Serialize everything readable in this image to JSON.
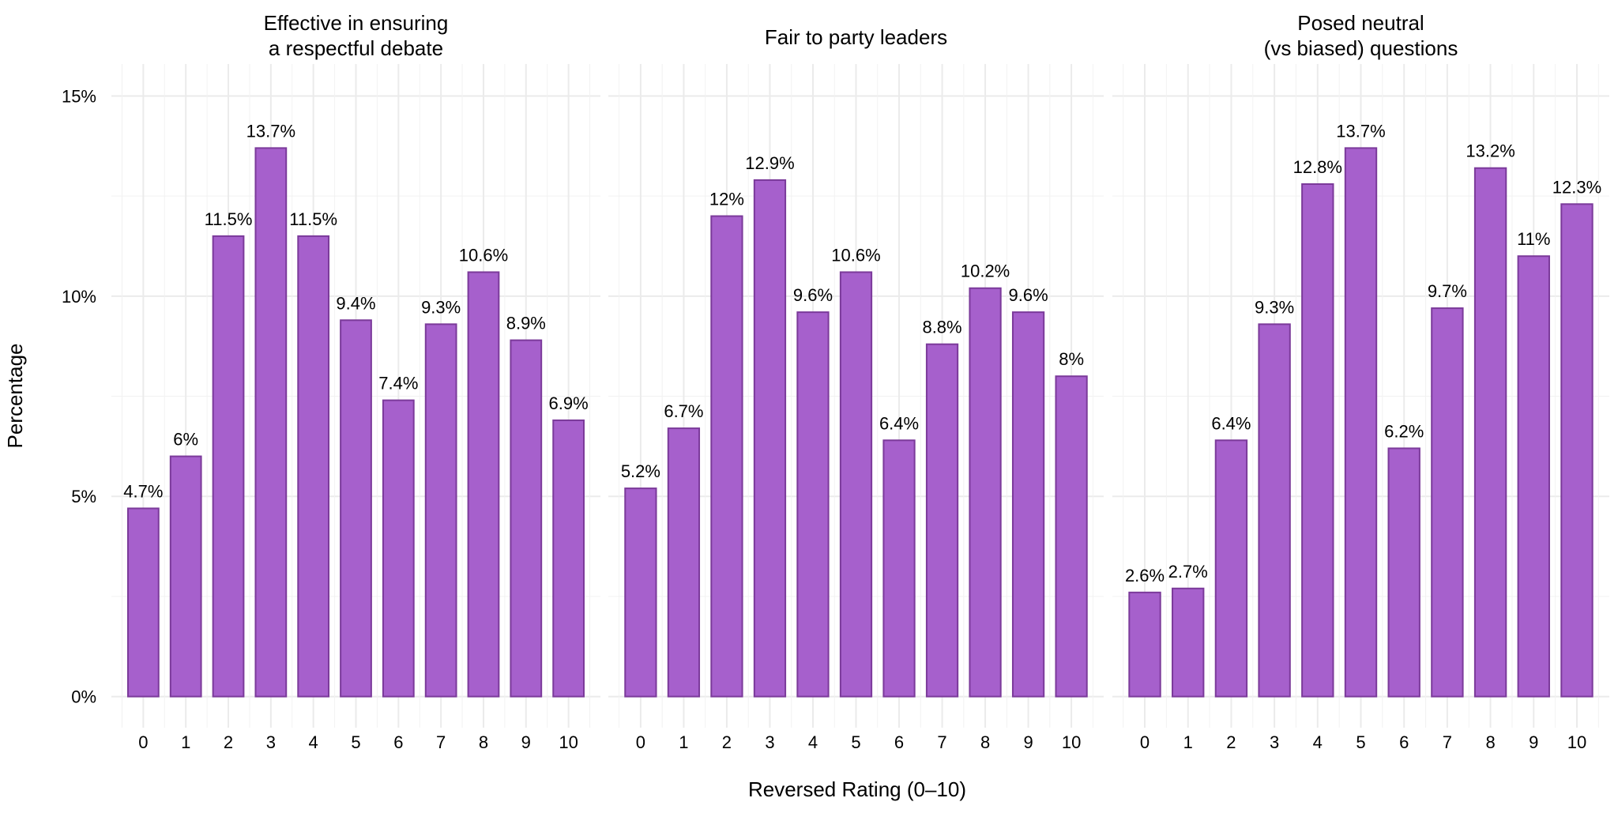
{
  "chart_data": {
    "type": "bar",
    "xlabel": "Reversed Rating (0–10)",
    "ylabel": "Percentage",
    "ylim": [
      0,
      15
    ],
    "yticks": [
      "0%",
      "5%",
      "10%",
      "15%"
    ],
    "grid": true,
    "categories": [
      "0",
      "1",
      "2",
      "3",
      "4",
      "5",
      "6",
      "7",
      "8",
      "9",
      "10"
    ],
    "bar_color": "#a660cc",
    "bar_border_color": "#7b3a9a",
    "panels": [
      {
        "title": [
          "Effective in ensuring",
          "a respectful debate"
        ],
        "values": [
          4.7,
          6.0,
          11.5,
          13.7,
          11.5,
          9.4,
          7.4,
          9.3,
          10.6,
          8.9,
          6.9
        ],
        "labels": [
          "4.7%",
          "6%",
          "11.5%",
          "13.7%",
          "11.5%",
          "9.4%",
          "7.4%",
          "9.3%",
          "10.6%",
          "8.9%",
          "6.9%"
        ]
      },
      {
        "title": [
          "Fair to party leaders"
        ],
        "values": [
          5.2,
          6.7,
          12.0,
          12.9,
          9.6,
          10.6,
          6.4,
          8.8,
          10.2,
          9.6,
          8.0
        ],
        "labels": [
          "5.2%",
          "6.7%",
          "12%",
          "12.9%",
          "9.6%",
          "10.6%",
          "6.4%",
          "8.8%",
          "10.2%",
          "9.6%",
          "8%"
        ]
      },
      {
        "title": [
          "Posed neutral",
          "(vs biased) questions"
        ],
        "values": [
          2.6,
          2.7,
          6.4,
          9.3,
          12.8,
          13.7,
          6.2,
          9.7,
          13.2,
          11.0,
          12.3
        ],
        "labels": [
          "2.6%",
          "2.7%",
          "6.4%",
          "9.3%",
          "12.8%",
          "13.7%",
          "6.2%",
          "9.7%",
          "13.2%",
          "11%",
          "12.3%"
        ]
      }
    ]
  }
}
